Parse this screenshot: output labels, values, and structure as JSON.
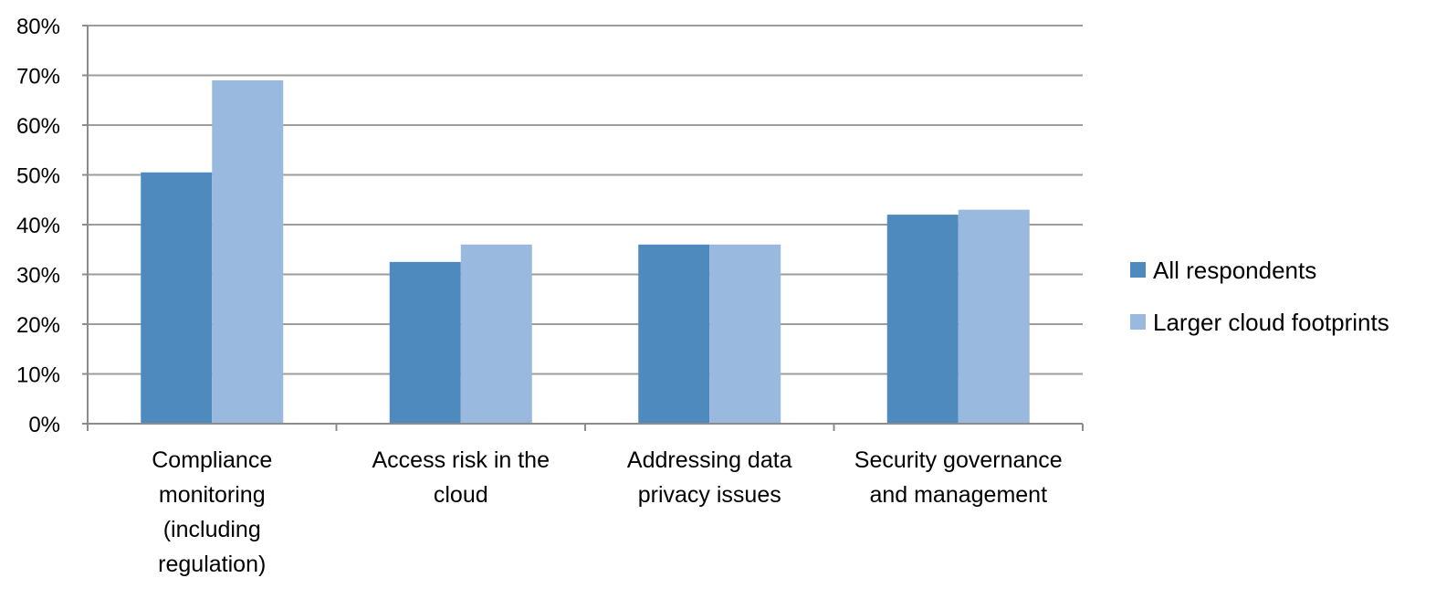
{
  "chart_data": {
    "type": "bar",
    "categories": [
      [
        "Compliance",
        "monitoring",
        "(including",
        "regulation)"
      ],
      [
        "Access risk in the",
        "cloud"
      ],
      [
        "Addressing data",
        "privacy issues"
      ],
      [
        "Security governance",
        "and management"
      ]
    ],
    "series": [
      {
        "name": "All respondents",
        "color": "#4f8abe",
        "values": [
          50.5,
          32.5,
          36,
          42
        ]
      },
      {
        "name": "Larger cloud footprints",
        "color": "#9ab9df",
        "values": [
          69,
          36,
          36,
          43
        ]
      }
    ],
    "yticks": [
      "0%",
      "10%",
      "20%",
      "30%",
      "40%",
      "50%",
      "60%",
      "70%",
      "80%"
    ],
    "ylim": [
      0,
      80
    ],
    "title": "",
    "xlabel": "",
    "ylabel": "",
    "grid": true,
    "legend_position": "right",
    "colors": {
      "gridline": "#9c9c9c",
      "axis": "#8c8c8c"
    }
  }
}
